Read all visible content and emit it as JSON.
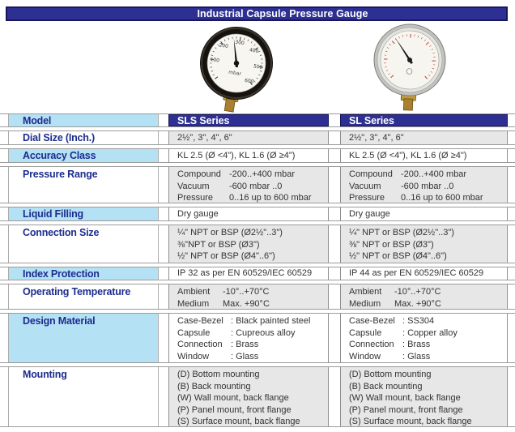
{
  "title": "Industrial Capsule Pressure Gauge",
  "colors": {
    "navy": "#2d2f92",
    "navy_border": "#17175e",
    "light_blue": "#b5e1f5",
    "label_text": "#1c2c8e",
    "gray_cell": "#e7e7e7",
    "row_line": "#9b9b9b"
  },
  "gauges": {
    "sls": {
      "name": "SLS series gauge - black painted steel case, brass connection",
      "unit": "mbar",
      "dial_numbers": [
        "100",
        "200",
        "300",
        "400",
        "500",
        "600"
      ]
    },
    "sl": {
      "name": "SL series gauge - stainless steel case, red dial scale, brass connection"
    }
  },
  "table": {
    "model_label": "Model",
    "columns": [
      "SLS Series",
      "SL Series"
    ],
    "rows": [
      {
        "label": "Dial Size (Inch.)",
        "sls": [
          "2½\", 3\", 4\", 6\""
        ],
        "sl": [
          "2½\", 3\", 4\", 6\""
        ]
      },
      {
        "label": "Accuracy Class",
        "sls": [
          "KL 2.5 (Ø <4\"), KL 1.6 (Ø ≥4\")"
        ],
        "sl": [
          "KL 2.5 (Ø <4\"), KL 1.6 (Ø ≥4\")"
        ]
      },
      {
        "label": "Pressure Range",
        "sls_pairs": [
          {
            "k": "Compound",
            "v": "-200..+400 mbar"
          },
          {
            "k": "Vacuum",
            "v": "-600 mbar ..0"
          },
          {
            "k": "Pressure",
            "v": "0..16 up to 600 mbar"
          }
        ],
        "sl_pairs": [
          {
            "k": "Compound",
            "v": "-200..+400 mbar"
          },
          {
            "k": "Vacuum",
            "v": "-600 mbar ..0"
          },
          {
            "k": "Pressure",
            "v": "0..16 up to 600 mbar"
          }
        ]
      },
      {
        "label": "Liquid Filling",
        "sls": [
          "Dry gauge"
        ],
        "sl": [
          "Dry gauge"
        ]
      },
      {
        "label": "Connection Size",
        "sls": [
          "¼\" NPT or BSP (Ø2½\"..3\")",
          "⅜\"NPT or BSP  (Ø3\")",
          "½\" NPT or BSP (Ø4\"..6\")"
        ],
        "sl": [
          "¼\" NPT or BSP (Ø2½\"..3\")",
          "⅜\" NPT or BSP (Ø3\")",
          "½\" NPT or BSP (Ø4\"..6\")"
        ]
      },
      {
        "label": "Index Protection",
        "sls": [
          "IP 32 as per EN 60529/IEC 60529"
        ],
        "sl": [
          "IP 44 as per EN 60529/IEC 60529"
        ]
      },
      {
        "label": "Operating Temperature",
        "sls_pairs": [
          {
            "k": "Ambient",
            "v": "-10°..+70°C"
          },
          {
            "k": "Medium",
            "v": "Max. +90°C"
          }
        ],
        "sl_pairs": [
          {
            "k": "Ambient",
            "v": "-10°..+70°C"
          },
          {
            "k": "Medium",
            "v": "Max. +90°C"
          }
        ]
      },
      {
        "label": "Design Material",
        "sls_pairs": [
          {
            "k": "Case-Bezel",
            "v": ": Black painted steel"
          },
          {
            "k": "Capsule",
            "v": ": Cupreous alloy"
          },
          {
            "k": "Connection",
            "v": ": Brass"
          },
          {
            "k": "Window",
            "v": ": Glass"
          }
        ],
        "sl_pairs": [
          {
            "k": "Case-Bezel",
            "v": ": SS304"
          },
          {
            "k": "Capsule",
            "v": ": Copper alloy"
          },
          {
            "k": "Connection",
            "v": ": Brass"
          },
          {
            "k": "Window",
            "v": ": Glass"
          }
        ]
      },
      {
        "label": "Mounting",
        "sls": [
          "(D) Bottom mounting",
          "(B) Back mounting",
          "(W) Wall mount, back flange",
          "(P) Panel mount, front flange",
          "(S) Surface mount, back flange"
        ],
        "sl": [
          "(D) Bottom mounting",
          "(B) Back mounting",
          "(W) Wall mount, back flange",
          "(P) Panel mount, front flange",
          "(S) Surface mount, back flange"
        ]
      }
    ]
  }
}
